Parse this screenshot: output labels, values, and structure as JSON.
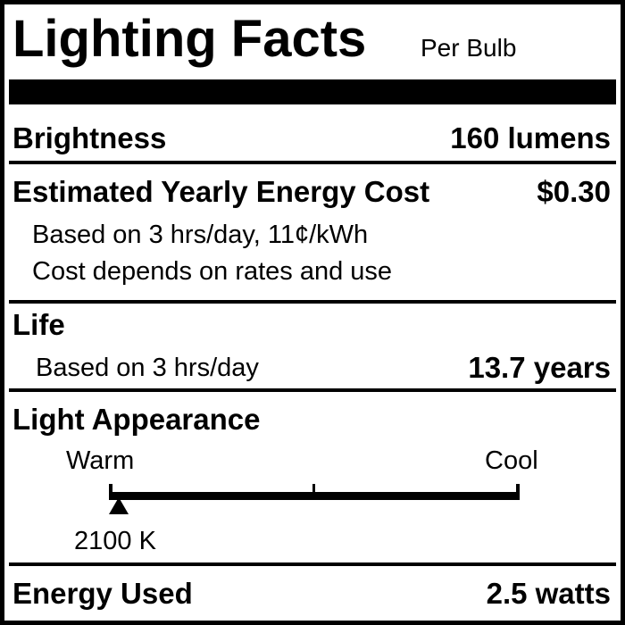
{
  "label": {
    "title": "Lighting Facts",
    "subtitle": "Per Bulb",
    "brightness": {
      "label": "Brightness",
      "value": "160 lumens"
    },
    "energy_cost": {
      "label": "Estimated Yearly Energy Cost",
      "value": "$0.30",
      "note1": "Based on 3 hrs/day, 11¢/kWh",
      "note2": "Cost depends on rates and use"
    },
    "life": {
      "label": "Life",
      "note": "Based on 3 hrs/day",
      "value": "13.7 years"
    },
    "light_appearance": {
      "label": "Light Appearance",
      "warm_label": "Warm",
      "cool_label": "Cool",
      "value": "2100 K",
      "marker_fraction": 0.02
    },
    "energy_used": {
      "label": "Energy Used",
      "value": "2.5 watts"
    }
  }
}
